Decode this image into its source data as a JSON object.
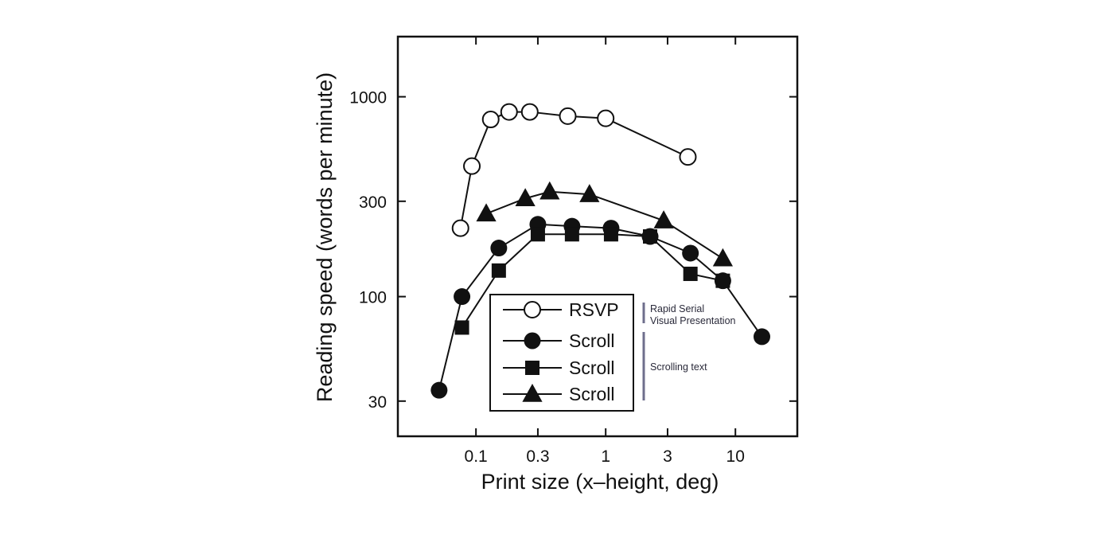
{
  "chart_data": {
    "type": "line",
    "xscale": "log",
    "yscale": "log",
    "xlabel": "Print size (x–height, deg)",
    "ylabel": "Reading speed (words per minute)",
    "xlim": [
      0.025,
      30
    ],
    "ylim": [
      20,
      2000
    ],
    "xticks": [
      {
        "value": 0.1,
        "label": "0.1"
      },
      {
        "value": 0.3,
        "label": "0.3"
      },
      {
        "value": 1,
        "label": "1"
      },
      {
        "value": 3,
        "label": "3"
      },
      {
        "value": 10,
        "label": "10"
      }
    ],
    "yticks": [
      {
        "value": 30,
        "label": "30"
      },
      {
        "value": 100,
        "label": "100"
      },
      {
        "value": 300,
        "label": "300"
      },
      {
        "value": 1000,
        "label": "1000"
      }
    ],
    "grid": false,
    "legend_position": "bottom-center",
    "series": [
      {
        "name": "RSVP",
        "marker": "circle-open",
        "x": [
          0.076,
          0.093,
          0.13,
          0.18,
          0.26,
          0.51,
          1.0,
          4.3
        ],
        "y": [
          220,
          450,
          770,
          840,
          840,
          800,
          780,
          500
        ]
      },
      {
        "name": "Scroll",
        "marker": "circle-filled",
        "x": [
          0.052,
          0.078,
          0.15,
          0.3,
          0.55,
          1.1,
          2.2,
          4.5,
          8.0,
          16
        ],
        "y": [
          34,
          100,
          175,
          230,
          225,
          220,
          200,
          165,
          120,
          63
        ]
      },
      {
        "name": "Scroll",
        "marker": "square-filled",
        "x": [
          0.078,
          0.15,
          0.3,
          0.55,
          1.1,
          2.2,
          4.5,
          8.0
        ],
        "y": [
          70,
          135,
          205,
          205,
          205,
          200,
          130,
          120
        ]
      },
      {
        "name": "Scroll",
        "marker": "triangle-filled",
        "x": [
          0.12,
          0.24,
          0.37,
          0.75,
          2.8,
          8.0
        ],
        "y": [
          260,
          310,
          335,
          325,
          240,
          155
        ]
      }
    ],
    "annotations": [
      {
        "text": [
          "Rapid Serial",
          "Visual Presentation"
        ],
        "applies_to": "RSVP"
      },
      {
        "text": [
          "Scrolling text"
        ],
        "applies_to": "Scroll"
      }
    ]
  },
  "colors": {
    "line": "#111111",
    "fill_open": "#ffffff",
    "bracket": "#6e6e8c"
  }
}
